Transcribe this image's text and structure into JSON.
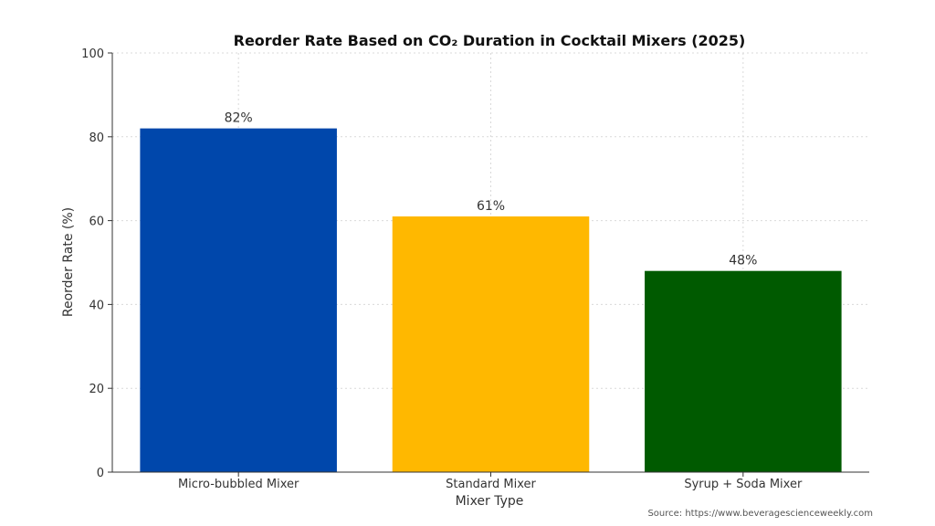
{
  "chart_data": {
    "type": "bar",
    "title": "Reorder Rate Based on CO₂ Duration in Cocktail Mixers (2025)",
    "xlabel": "Mixer Type",
    "ylabel": "Reorder Rate (%)",
    "categories": [
      "Micro-bubbled Mixer",
      "Standard Mixer",
      "Syrup + Soda Mixer"
    ],
    "values": [
      82,
      61,
      48
    ],
    "data_labels": [
      "82%",
      "61%",
      "48%"
    ],
    "colors": [
      "#0047ab",
      "#ffb800",
      "#005a00"
    ],
    "ylim": [
      0,
      100
    ],
    "yticks": [
      0,
      20,
      40,
      60,
      80,
      100
    ],
    "grid": true,
    "source": "Source: https://www.beveragescienceweekly.com"
  }
}
